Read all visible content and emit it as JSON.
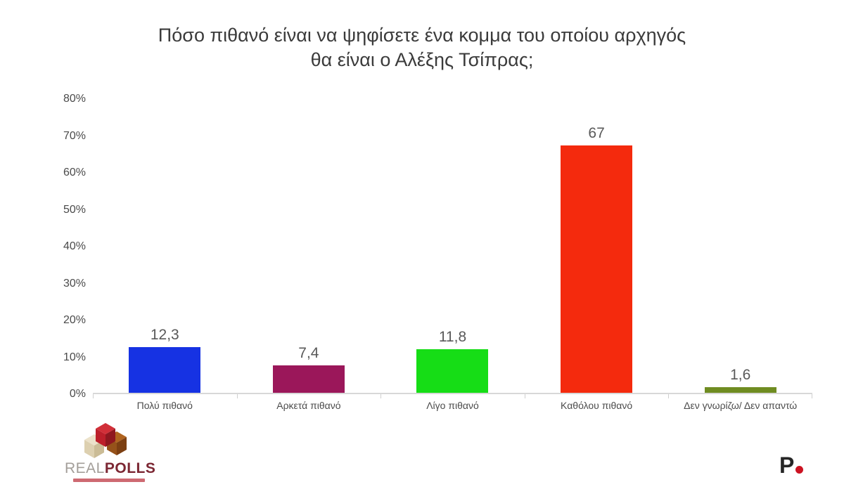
{
  "title": {
    "line1": "Πόσο πιθανό είναι να ψηφίσετε ένα κομμα του οποίου αρχηγός",
    "line2": "θα είναι ο Αλέξης Τσίπρας;"
  },
  "chart_data": {
    "type": "bar",
    "title": "Πόσο πιθανό είναι να ψηφίσετε ένα κομμα του οποίου αρχηγός θα είναι ο Αλέξης Τσίπρας;",
    "categories": [
      "Πολύ πιθανό",
      "Αρκετά πιθανό",
      "Λίγο πιθανό",
      "Καθόλου πιθανό",
      "Δεν γνωρίζω/ Δεν απαντώ"
    ],
    "values": [
      12.3,
      7.4,
      11.8,
      67,
      1.6
    ],
    "value_labels": [
      "12,3",
      "7,4",
      "11,8",
      "67",
      "1,6"
    ],
    "bar_colors": [
      "#1632e3",
      "#9b175a",
      "#16dd16",
      "#f42a0d",
      "#6f8c21"
    ],
    "xlabel": "",
    "ylabel": "",
    "ylim": [
      0,
      80
    ],
    "y_ticks": [
      0,
      10,
      20,
      30,
      40,
      50,
      60,
      70,
      80
    ],
    "y_tick_labels": [
      "0%",
      "10%",
      "20%",
      "30%",
      "40%",
      "50%",
      "60%",
      "70%",
      "80%"
    ],
    "grid": false,
    "legend": false,
    "value_decimal_separator": ","
  },
  "footer": {
    "realpolls": {
      "brand_light": "REAL",
      "brand_bold": "POLLS"
    },
    "protagon": {
      "letter": "P"
    }
  }
}
